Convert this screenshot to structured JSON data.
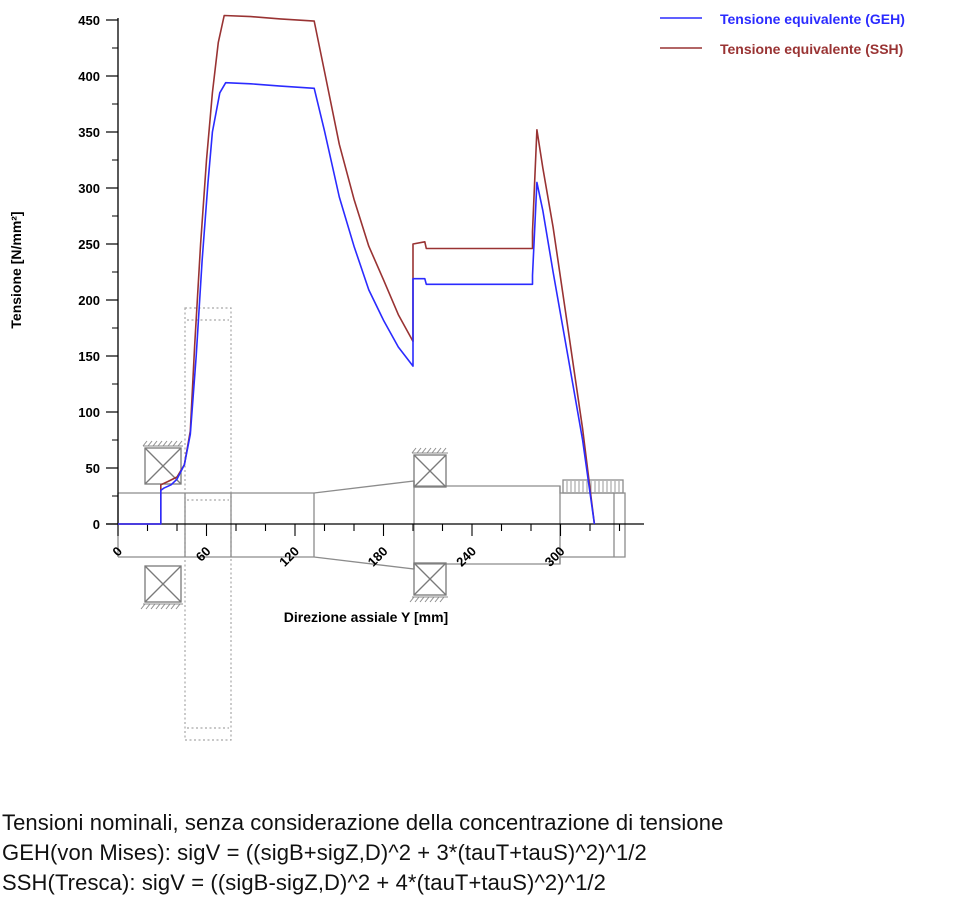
{
  "chart_data": {
    "type": "line",
    "xlabel": "Direzione assiale Y [mm]",
    "ylabel": "Tensione [N/mm²]",
    "xlim": [
      0,
      342
    ],
    "ylim": [
      0,
      450
    ],
    "xticks": [
      0,
      60,
      120,
      180,
      240,
      300
    ],
    "yticks": [
      0,
      50,
      100,
      150,
      200,
      250,
      300,
      350,
      400,
      450
    ],
    "legend_position": "top-right",
    "grid": false,
    "series": [
      {
        "name": "Tensione equivalente (GEH)",
        "color": "#2b2bff",
        "points": [
          [
            0,
            0
          ],
          [
            29,
            0
          ],
          [
            29,
            30
          ],
          [
            31,
            32
          ],
          [
            36,
            35
          ],
          [
            40,
            40
          ],
          [
            45,
            53
          ],
          [
            49,
            80
          ],
          [
            53,
            150
          ],
          [
            57,
            235
          ],
          [
            61,
            305
          ],
          [
            64,
            350
          ],
          [
            69,
            385
          ],
          [
            73,
            394
          ],
          [
            90,
            393
          ],
          [
            110,
            391
          ],
          [
            133,
            389
          ],
          [
            140,
            351
          ],
          [
            150,
            292
          ],
          [
            160,
            248
          ],
          [
            170,
            209
          ],
          [
            180,
            182
          ],
          [
            190,
            158
          ],
          [
            200,
            141
          ],
          [
            200,
            219
          ],
          [
            208,
            219
          ],
          [
            209,
            214
          ],
          [
            220,
            214
          ],
          [
            250,
            214
          ],
          [
            281,
            214
          ],
          [
            281,
            222
          ],
          [
            284,
            305
          ],
          [
            288,
            280
          ],
          [
            295,
            225
          ],
          [
            305,
            150
          ],
          [
            315,
            75
          ],
          [
            323,
            0
          ]
        ]
      },
      {
        "name": "Tensione equivalente (SSH)",
        "color": "#993333",
        "points": [
          [
            0,
            0
          ],
          [
            29,
            0
          ],
          [
            29,
            35
          ],
          [
            34,
            38
          ],
          [
            40,
            42
          ],
          [
            45,
            53
          ],
          [
            49,
            83
          ],
          [
            52,
            160
          ],
          [
            56,
            250
          ],
          [
            60,
            325
          ],
          [
            64,
            385
          ],
          [
            68,
            430
          ],
          [
            72,
            454
          ],
          [
            90,
            453
          ],
          [
            110,
            451
          ],
          [
            133,
            449
          ],
          [
            140,
            404
          ],
          [
            150,
            339
          ],
          [
            160,
            290
          ],
          [
            170,
            248
          ],
          [
            180,
            218
          ],
          [
            190,
            187
          ],
          [
            200,
            163
          ],
          [
            200,
            250
          ],
          [
            208,
            252
          ],
          [
            209,
            246
          ],
          [
            220,
            246
          ],
          [
            250,
            246
          ],
          [
            281,
            246
          ],
          [
            281,
            261
          ],
          [
            284,
            352
          ],
          [
            288,
            318
          ],
          [
            295,
            265
          ],
          [
            305,
            175
          ],
          [
            315,
            85
          ],
          [
            323,
            0
          ]
        ]
      }
    ]
  },
  "notes": {
    "line1": "Tensioni nominali, senza considerazione della concentrazione di tensione",
    "line2": "GEH(von Mises): sigV = ((sigB+sigZ,D)^2 + 3*(tauT+tauS)^2)^1/2",
    "line3": "SSH(Tresca): sigV = ((sigB-sigZ,D)^2 + 4*(tauT+tauS)^2)^1/2"
  }
}
